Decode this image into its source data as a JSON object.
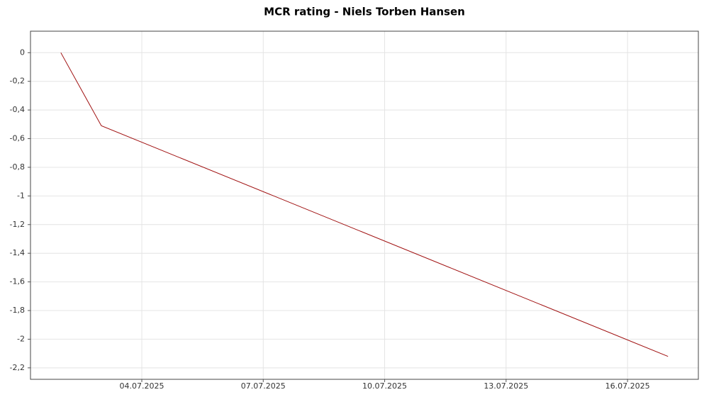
{
  "chart_data": {
    "type": "line",
    "title": "MCR rating - Niels Torben Hansen",
    "x": [
      "02.07.2025",
      "03.07.2025",
      "17.07.2025"
    ],
    "series": [
      {
        "name": "MCR rating",
        "color": "#a01010",
        "values": [
          0,
          -0.51,
          -2.12
        ]
      }
    ],
    "xlim": [
      "01.07.2025 06:00",
      "17.07.2025 18:00"
    ],
    "xticks": [
      "04.07.2025",
      "07.07.2025",
      "10.07.2025",
      "13.07.2025",
      "16.07.2025"
    ],
    "ylim": [
      0.15,
      -2.28
    ],
    "yticks": [
      0,
      {
        "value": -0.2,
        "label": "-0,2"
      },
      {
        "value": -0.4,
        "label": "-0,4"
      },
      {
        "value": -0.6,
        "label": "-0,6"
      },
      {
        "value": -0.8,
        "label": "-0,8"
      },
      -1,
      {
        "value": -1.2,
        "label": "-1,2"
      },
      {
        "value": -1.4,
        "label": "-1,4"
      },
      {
        "value": -1.6,
        "label": "-1,6"
      },
      {
        "value": -1.8,
        "label": "-1,8"
      },
      -2,
      {
        "value": -2.2,
        "label": "-2,2"
      }
    ],
    "grid": true
  }
}
